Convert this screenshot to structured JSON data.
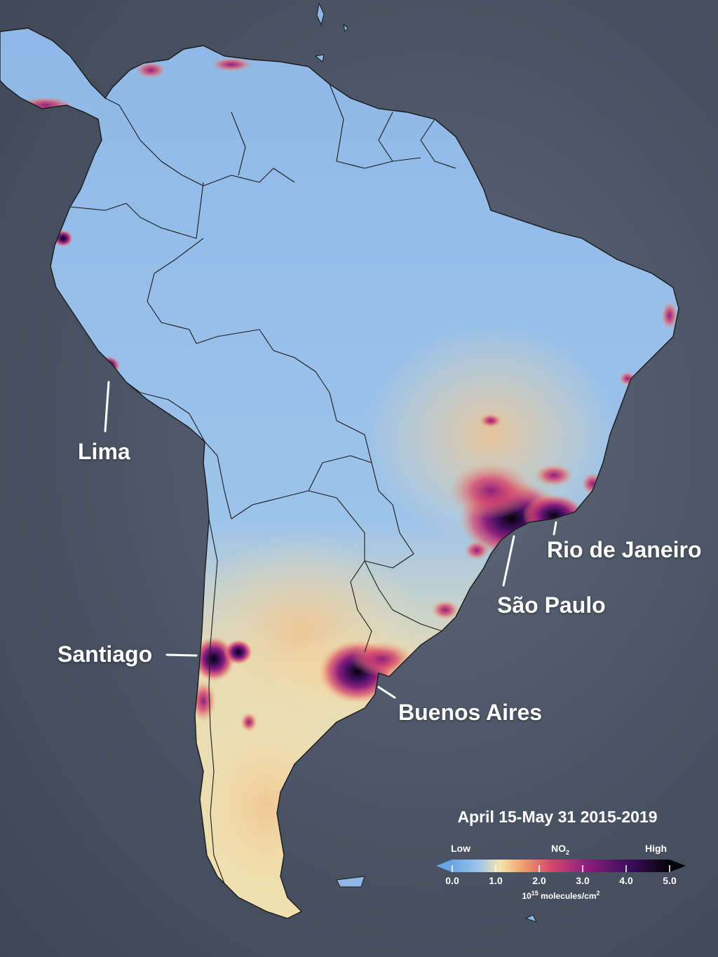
{
  "map": {
    "cities": [
      {
        "name": "Lima"
      },
      {
        "name": "Rio de Janeiro"
      },
      {
        "name": "São Paulo"
      },
      {
        "name": "Santiago"
      },
      {
        "name": "Buenos Aires"
      }
    ]
  },
  "legend": {
    "title": "April 15-May 31 2015-2019",
    "low_label": "Low",
    "high_label": "High",
    "variable": "NO",
    "variable_sub": "2",
    "ticks": [
      "0.0",
      "1.0",
      "2.0",
      "3.0",
      "4.0",
      "5.0"
    ],
    "units_base": "10",
    "units_exp": "15",
    "units_text": " molecules/cm",
    "units_exp2": "2",
    "colors": [
      "#6aa6e6",
      "#9cc4ea",
      "#f6e3b0",
      "#f0a36e",
      "#d7486c",
      "#8c1f7e",
      "#3a0d5a",
      "#050308"
    ]
  }
}
